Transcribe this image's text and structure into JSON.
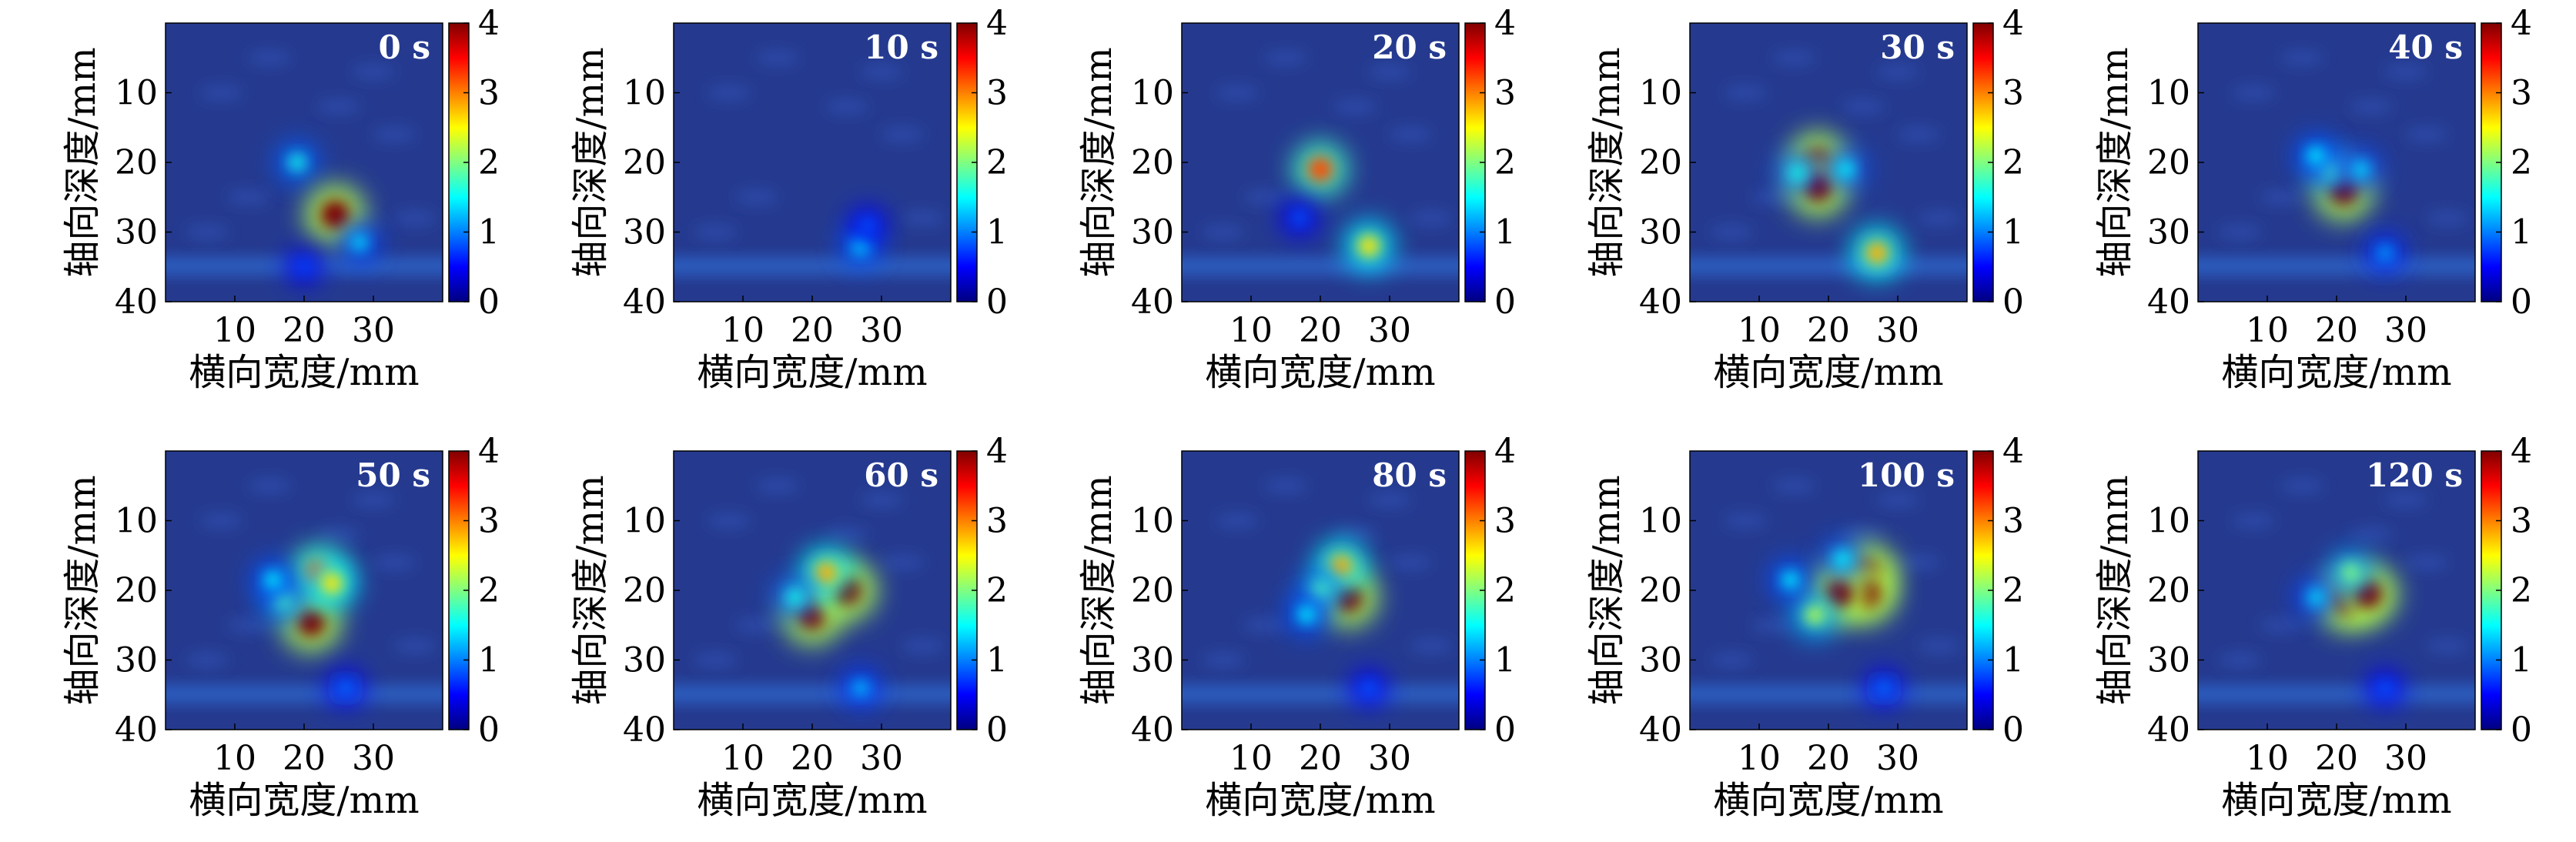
{
  "figure": {
    "xlabel": "横向宽度/mm",
    "ylabel": "轴向深度/mm",
    "xticks": [
      "10",
      "20",
      "30"
    ],
    "yticks": [
      "10",
      "20",
      "30",
      "40"
    ],
    "cticks": [
      "0",
      "1",
      "2",
      "3",
      "4"
    ]
  },
  "chart_data": [
    {
      "type": "heatmap",
      "title": "0 s",
      "xlabel": "横向宽度/mm",
      "ylabel": "轴向深度/mm",
      "xlim": [
        0,
        40
      ],
      "ylim": [
        40,
        0
      ],
      "clim": [
        0,
        4
      ],
      "colormap": "jet",
      "hotspots": [
        {
          "x": 19,
          "y": 20,
          "v": 1.6
        },
        {
          "x": 24.5,
          "y": 27.5,
          "v": 4
        },
        {
          "x": 28,
          "y": 31.5,
          "v": 1.4
        },
        {
          "x": 20,
          "y": 35,
          "v": 0.8
        }
      ]
    },
    {
      "type": "heatmap",
      "title": "10 s",
      "xlabel": "横向宽度/mm",
      "ylabel": "轴向深度/mm",
      "xlim": [
        0,
        40
      ],
      "ylim": [
        40,
        0
      ],
      "clim": [
        0,
        4
      ],
      "colormap": "jet",
      "hotspots": [
        {
          "x": 27,
          "y": 32,
          "v": 1.5
        },
        {
          "x": 28,
          "y": 29,
          "v": 0.9
        }
      ]
    },
    {
      "type": "heatmap",
      "title": "20 s",
      "xlabel": "横向宽度/mm",
      "ylabel": "轴向深度/mm",
      "xlim": [
        0,
        40
      ],
      "ylim": [
        40,
        0
      ],
      "clim": [
        0,
        4
      ],
      "colormap": "jet",
      "hotspots": [
        {
          "x": 20,
          "y": 21,
          "v": 3.2
        },
        {
          "x": 27,
          "y": 32,
          "v": 2.6
        },
        {
          "x": 17,
          "y": 28,
          "v": 0.9
        }
      ]
    },
    {
      "type": "heatmap",
      "title": "30 s",
      "xlabel": "横向宽度/mm",
      "ylabel": "轴向深度/mm",
      "xlim": [
        0,
        40
      ],
      "ylim": [
        40,
        0
      ],
      "clim": [
        0,
        4
      ],
      "colormap": "jet",
      "hotspots": [
        {
          "x": 18.5,
          "y": 20,
          "v": 4
        },
        {
          "x": 18.5,
          "y": 23.5,
          "v": 4
        },
        {
          "x": 15.5,
          "y": 21.5,
          "v": 1.6
        },
        {
          "x": 22.5,
          "y": 21,
          "v": 1.5
        },
        {
          "x": 27,
          "y": 33,
          "v": 2.8
        }
      ]
    },
    {
      "type": "heatmap",
      "title": "40 s",
      "xlabel": "横向宽度/mm",
      "ylabel": "轴向深度/mm",
      "xlim": [
        0,
        40
      ],
      "ylim": [
        40,
        0
      ],
      "clim": [
        0,
        4
      ],
      "colormap": "jet",
      "hotspots": [
        {
          "x": 21,
          "y": 24,
          "v": 4
        },
        {
          "x": 19,
          "y": 21,
          "v": 1.8
        },
        {
          "x": 23.5,
          "y": 21,
          "v": 1.4
        },
        {
          "x": 17,
          "y": 19,
          "v": 1.5
        },
        {
          "x": 27,
          "y": 33,
          "v": 1.2
        }
      ]
    },
    {
      "type": "heatmap",
      "title": "50 s",
      "xlabel": "横向宽度/mm",
      "ylabel": "轴向深度/mm",
      "xlim": [
        0,
        40
      ],
      "ylim": [
        40,
        0
      ],
      "clim": [
        0,
        4
      ],
      "colormap": "jet",
      "hotspots": [
        {
          "x": 21,
          "y": 24.5,
          "v": 4
        },
        {
          "x": 22,
          "y": 17.5,
          "v": 3.2
        },
        {
          "x": 24,
          "y": 19,
          "v": 2.6
        },
        {
          "x": 17,
          "y": 21.5,
          "v": 1.8
        },
        {
          "x": 15.5,
          "y": 18.5,
          "v": 1.5
        },
        {
          "x": 26,
          "y": 34,
          "v": 1
        }
      ]
    },
    {
      "type": "heatmap",
      "title": "60 s",
      "xlabel": "横向宽度/mm",
      "ylabel": "轴向深度/mm",
      "xlim": [
        0,
        40
      ],
      "ylim": [
        40,
        0
      ],
      "clim": [
        0,
        4
      ],
      "colormap": "jet",
      "hotspots": [
        {
          "x": 20,
          "y": 23.5,
          "v": 4
        },
        {
          "x": 25,
          "y": 20,
          "v": 4
        },
        {
          "x": 22,
          "y": 17.5,
          "v": 2.8
        },
        {
          "x": 17.5,
          "y": 21,
          "v": 1.6
        },
        {
          "x": 27,
          "y": 34,
          "v": 1.3
        }
      ]
    },
    {
      "type": "heatmap",
      "title": "80 s",
      "xlabel": "横向宽度/mm",
      "ylabel": "轴向深度/mm",
      "xlim": [
        0,
        40
      ],
      "ylim": [
        40,
        0
      ],
      "clim": [
        0,
        4
      ],
      "colormap": "jet",
      "hotspots": [
        {
          "x": 24,
          "y": 21,
          "v": 4
        },
        {
          "x": 23,
          "y": 16.5,
          "v": 2.8
        },
        {
          "x": 20,
          "y": 20,
          "v": 1.8
        },
        {
          "x": 18,
          "y": 23.5,
          "v": 1.5
        },
        {
          "x": 27,
          "y": 34,
          "v": 0.9
        }
      ]
    },
    {
      "type": "heatmap",
      "title": "100 s",
      "xlabel": "横向宽度/mm",
      "ylabel": "轴向深度/mm",
      "xlim": [
        0,
        40
      ],
      "ylim": [
        40,
        0
      ],
      "clim": [
        0,
        4
      ],
      "colormap": "jet",
      "hotspots": [
        {
          "x": 25.5,
          "y": 17.5,
          "v": 4
        },
        {
          "x": 25.5,
          "y": 20.5,
          "v": 4
        },
        {
          "x": 21.5,
          "y": 20.5,
          "v": 4
        },
        {
          "x": 18,
          "y": 23.5,
          "v": 2.2
        },
        {
          "x": 14.5,
          "y": 18.5,
          "v": 1.5
        },
        {
          "x": 22,
          "y": 15.5,
          "v": 1.5
        },
        {
          "x": 28,
          "y": 34,
          "v": 1
        }
      ]
    },
    {
      "type": "heatmap",
      "title": "120 s",
      "xlabel": "横向宽度/mm",
      "ylabel": "轴向深度/mm",
      "xlim": [
        0,
        40
      ],
      "ylim": [
        40,
        0
      ],
      "clim": [
        0,
        4
      ],
      "colormap": "jet",
      "hotspots": [
        {
          "x": 21.5,
          "y": 21.5,
          "v": 4
        },
        {
          "x": 24.5,
          "y": 20.5,
          "v": 4
        },
        {
          "x": 22,
          "y": 17.5,
          "v": 2
        },
        {
          "x": 17,
          "y": 21,
          "v": 1.4
        },
        {
          "x": 27,
          "y": 34,
          "v": 0.9
        }
      ]
    }
  ]
}
